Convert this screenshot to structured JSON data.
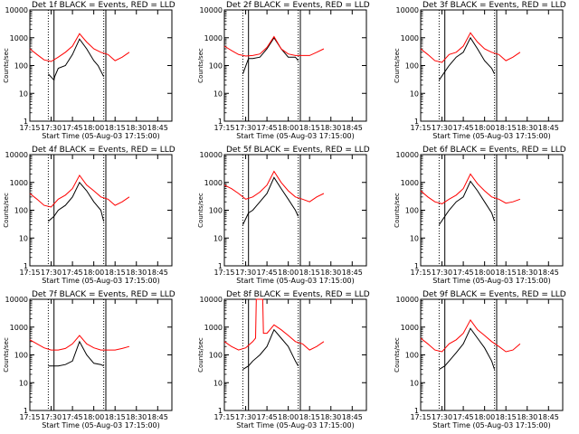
{
  "figure": {
    "colors": {
      "events": "#000000",
      "lld": "#ff0000",
      "background": "#ffffff"
    }
  },
  "chart_data": [
    {
      "type": "line",
      "title": "Det 1f  BLACK = Events, RED = LLD",
      "xlabel": "Start Time (05-Aug-03 17:15:00)",
      "ylabel": "Counts/sec",
      "x_ticks": [
        "17:15",
        "17:30",
        "17:45",
        "18:00",
        "18:15",
        "18:30",
        "18:45"
      ],
      "xlim_min": [
        0,
        100
      ],
      "y_scale": "log",
      "y_ticks": [
        "1",
        "10",
        "100",
        "1000",
        "10000"
      ],
      "ylim": [
        1,
        10000
      ],
      "dotted_vlines_min": [
        13,
        52
      ],
      "solid_vlines_min": [
        17,
        53.5
      ],
      "series": [
        {
          "name": "Events",
          "x": [
            13,
            17,
            17.5,
            20,
            25,
            30,
            35,
            40,
            45,
            48,
            52
          ],
          "y": [
            50,
            30,
            40,
            80,
            100,
            250,
            900,
            400,
            150,
            100,
            40
          ]
        },
        {
          "name": "LLD",
          "x": [
            0,
            5,
            10,
            15,
            20,
            25,
            30,
            35,
            40,
            45,
            50,
            55,
            60,
            65,
            70
          ],
          "y": [
            400,
            250,
            160,
            140,
            200,
            300,
            500,
            1400,
            700,
            400,
            300,
            250,
            150,
            200,
            300
          ]
        }
      ]
    },
    {
      "type": "line",
      "title": "Det 2f  BLACK = Events, RED = LLD",
      "xlabel": "Start Time (05-Aug-03 17:15:00)",
      "ylabel": "Counts/sec",
      "x_ticks": [
        "17:15",
        "17:30",
        "17:45",
        "18:00",
        "18:15",
        "18:30",
        "18:45"
      ],
      "xlim_min": [
        0,
        100
      ],
      "y_scale": "log",
      "y_ticks": [
        "1",
        "10",
        "100",
        "1000",
        "10000"
      ],
      "ylim": [
        1,
        10000
      ],
      "dotted_vlines_min": [
        13,
        52
      ],
      "solid_vlines_min": [
        17,
        53.5
      ],
      "series": [
        {
          "name": "Events",
          "x": [
            13,
            17,
            20,
            25,
            30,
            35,
            40,
            45,
            50,
            52
          ],
          "y": [
            50,
            180,
            180,
            200,
            400,
            1000,
            400,
            200,
            200,
            150
          ]
        },
        {
          "name": "LLD",
          "x": [
            0,
            5,
            10,
            15,
            20,
            25,
            30,
            35,
            40,
            45,
            50,
            55,
            60,
            65,
            70
          ],
          "y": [
            500,
            350,
            250,
            220,
            230,
            260,
            450,
            1100,
            400,
            260,
            230,
            230,
            230,
            300,
            400
          ]
        }
      ]
    },
    {
      "type": "line",
      "title": "Det 3f  BLACK = Events, RED = LLD",
      "xlabel": "Start Time (05-Aug-03 17:15:00)",
      "ylabel": "Counts/sec",
      "x_ticks": [
        "17:15",
        "17:30",
        "17:45",
        "18:00",
        "18:15",
        "18:30",
        "18:45"
      ],
      "xlim_min": [
        0,
        100
      ],
      "y_scale": "log",
      "y_ticks": [
        "1",
        "10",
        "100",
        "1000",
        "10000"
      ],
      "ylim": [
        1,
        10000
      ],
      "dotted_vlines_min": [
        13,
        52
      ],
      "solid_vlines_min": [
        17,
        53.5
      ],
      "series": [
        {
          "name": "Events",
          "x": [
            13,
            17,
            20,
            25,
            30,
            35,
            40,
            45,
            50,
            52
          ],
          "y": [
            30,
            60,
            100,
            200,
            300,
            1000,
            400,
            150,
            80,
            50
          ]
        },
        {
          "name": "LLD",
          "x": [
            0,
            5,
            10,
            15,
            20,
            25,
            30,
            35,
            40,
            45,
            50,
            55,
            60,
            65,
            70
          ],
          "y": [
            400,
            250,
            150,
            130,
            250,
            300,
            500,
            1500,
            700,
            400,
            300,
            250,
            150,
            200,
            300
          ]
        }
      ]
    },
    {
      "type": "line",
      "title": "Det 4f  BLACK = Events, RED = LLD",
      "xlabel": "Start Time (05-Aug-03 17:15:00)",
      "ylabel": "Counts/sec",
      "x_ticks": [
        "17:15",
        "17:30",
        "17:45",
        "18:00",
        "18:15",
        "18:30",
        "18:45"
      ],
      "xlim_min": [
        0,
        100
      ],
      "y_scale": "log",
      "y_ticks": [
        "1",
        "10",
        "100",
        "1000",
        "10000"
      ],
      "ylim": [
        1,
        10000
      ],
      "dotted_vlines_min": [
        13,
        52
      ],
      "solid_vlines_min": [
        17,
        53.5
      ],
      "series": [
        {
          "name": "Events",
          "x": [
            13,
            17,
            20,
            25,
            30,
            35,
            40,
            45,
            50,
            52
          ],
          "y": [
            40,
            60,
            100,
            150,
            300,
            1000,
            500,
            200,
            100,
            40
          ]
        },
        {
          "name": "LLD",
          "x": [
            0,
            5,
            10,
            15,
            20,
            25,
            30,
            35,
            40,
            45,
            50,
            55,
            60,
            65,
            70
          ],
          "y": [
            400,
            250,
            150,
            130,
            250,
            350,
            600,
            1800,
            800,
            500,
            300,
            250,
            150,
            200,
            300
          ]
        }
      ]
    },
    {
      "type": "line",
      "title": "Det 5f  BLACK = Events, RED = LLD",
      "xlabel": "Start Time (05-Aug-03 17:15:00)",
      "ylabel": "Counts/sec",
      "x_ticks": [
        "17:15",
        "17:30",
        "17:45",
        "18:00",
        "18:15",
        "18:30",
        "18:45"
      ],
      "xlim_min": [
        0,
        100
      ],
      "y_scale": "log",
      "y_ticks": [
        "1",
        "10",
        "100",
        "1000",
        "10000"
      ],
      "ylim": [
        1,
        10000
      ],
      "dotted_vlines_min": [
        13,
        52
      ],
      "solid_vlines_min": [
        17,
        53.5
      ],
      "series": [
        {
          "name": "Events",
          "x": [
            13,
            17,
            20,
            25,
            30,
            35,
            40,
            45,
            50,
            52
          ],
          "y": [
            30,
            80,
            100,
            200,
            400,
            1500,
            600,
            250,
            100,
            60
          ]
        },
        {
          "name": "LLD",
          "x": [
            0,
            5,
            10,
            15,
            20,
            25,
            30,
            35,
            40,
            45,
            50,
            55,
            60,
            65,
            70
          ],
          "y": [
            800,
            600,
            400,
            250,
            300,
            450,
            800,
            2500,
            1000,
            500,
            300,
            250,
            200,
            300,
            400
          ]
        }
      ]
    },
    {
      "type": "line",
      "title": "Det 6f  BLACK = Events, RED = LLD",
      "xlabel": "Start Time (05-Aug-03 17:15:00)",
      "ylabel": "Counts/sec",
      "x_ticks": [
        "17:15",
        "17:30",
        "17:45",
        "18:00",
        "18:15",
        "18:30",
        "18:45"
      ],
      "xlim_min": [
        0,
        100
      ],
      "y_scale": "log",
      "y_ticks": [
        "1",
        "10",
        "100",
        "1000",
        "10000"
      ],
      "ylim": [
        1,
        10000
      ],
      "dotted_vlines_min": [
        13,
        52
      ],
      "solid_vlines_min": [
        17,
        53.5
      ],
      "series": [
        {
          "name": "Events",
          "x": [
            13,
            17,
            20,
            25,
            30,
            35,
            40,
            45,
            50,
            52
          ],
          "y": [
            30,
            60,
            100,
            200,
            300,
            1100,
            500,
            200,
            80,
            40
          ]
        },
        {
          "name": "LLD",
          "x": [
            0,
            5,
            10,
            15,
            20,
            25,
            30,
            35,
            40,
            45,
            50,
            55,
            60,
            65,
            70
          ],
          "y": [
            500,
            300,
            200,
            170,
            250,
            350,
            600,
            2000,
            900,
            500,
            300,
            250,
            180,
            200,
            250
          ]
        }
      ]
    },
    {
      "type": "line",
      "title": "Det 7f  BLACK = Events, RED = LLD",
      "xlabel": "Start Time (05-Aug-03 17:15:00)",
      "ylabel": "Counts/sec",
      "x_ticks": [
        "17:15",
        "17:30",
        "17:45",
        "18:00",
        "18:15",
        "18:30",
        "18:45"
      ],
      "xlim_min": [
        0,
        100
      ],
      "y_scale": "log",
      "y_ticks": [
        "1",
        "10",
        "100",
        "1000",
        "10000"
      ],
      "ylim": [
        1,
        10000
      ],
      "dotted_vlines_min": [
        13,
        52
      ],
      "solid_vlines_min": [
        17,
        53.5
      ],
      "series": [
        {
          "name": "Events",
          "x": [
            13,
            17,
            20,
            25,
            30,
            35,
            40,
            45,
            50,
            52
          ],
          "y": [
            40,
            40,
            40,
            45,
            60,
            300,
            100,
            50,
            45,
            40
          ]
        },
        {
          "name": "LLD",
          "x": [
            0,
            5,
            10,
            15,
            20,
            25,
            30,
            35,
            40,
            45,
            50,
            55,
            60,
            65,
            70
          ],
          "y": [
            350,
            250,
            180,
            150,
            150,
            170,
            250,
            500,
            250,
            180,
            150,
            150,
            150,
            170,
            200
          ]
        }
      ]
    },
    {
      "type": "line",
      "title": "Det 8f  BLACK = Events, RED = LLD",
      "xlabel": "Start Time (05-Aug-03 17:15:00)",
      "ylabel": "Counts/sec",
      "x_ticks": [
        "17:15",
        "17:30",
        "17:45",
        "18:00",
        "18:15",
        "18:30",
        "18:45"
      ],
      "xlim_min": [
        0,
        100
      ],
      "y_scale": "log",
      "y_ticks": [
        "1",
        "10",
        "100",
        "1000",
        "10000"
      ],
      "ylim": [
        1,
        10000
      ],
      "dotted_vlines_min": [
        13,
        52
      ],
      "solid_vlines_min": [
        17,
        53.5
      ],
      "series": [
        {
          "name": "Events",
          "x": [
            13,
            17,
            20,
            25,
            30,
            35,
            40,
            45,
            50,
            52
          ],
          "y": [
            30,
            40,
            60,
            100,
            200,
            800,
            400,
            200,
            60,
            40
          ]
        },
        {
          "name": "LLD",
          "x": [
            0,
            5,
            10,
            15,
            20,
            22,
            22.5,
            27,
            27.5,
            30,
            35,
            40,
            45,
            50,
            55,
            60,
            65,
            70
          ],
          "y": [
            300,
            200,
            150,
            180,
            300,
            400,
            10000,
            10000,
            600,
            600,
            1200,
            800,
            500,
            300,
            250,
            150,
            200,
            300
          ]
        }
      ]
    },
    {
      "type": "line",
      "title": "Det 9f  BLACK = Events, RED = LLD",
      "xlabel": "Start Time (05-Aug-03 17:15:00)",
      "ylabel": "Counts/sec",
      "x_ticks": [
        "17:15",
        "17:30",
        "17:45",
        "18:00",
        "18:15",
        "18:30",
        "18:45"
      ],
      "xlim_min": [
        0,
        100
      ],
      "y_scale": "log",
      "y_ticks": [
        "1",
        "10",
        "100",
        "1000",
        "10000"
      ],
      "ylim": [
        1,
        10000
      ],
      "dotted_vlines_min": [
        13,
        52
      ],
      "solid_vlines_min": [
        17,
        53.5
      ],
      "series": [
        {
          "name": "Events",
          "x": [
            13,
            17,
            20,
            25,
            30,
            35,
            40,
            45,
            50,
            52
          ],
          "y": [
            30,
            40,
            60,
            120,
            250,
            900,
            400,
            180,
            60,
            30
          ]
        },
        {
          "name": "LLD",
          "x": [
            0,
            5,
            10,
            15,
            20,
            25,
            30,
            35,
            40,
            45,
            50,
            55,
            60,
            65,
            70
          ],
          "y": [
            400,
            250,
            150,
            130,
            250,
            350,
            600,
            1800,
            800,
            500,
            300,
            200,
            130,
            150,
            250
          ]
        }
      ]
    }
  ]
}
